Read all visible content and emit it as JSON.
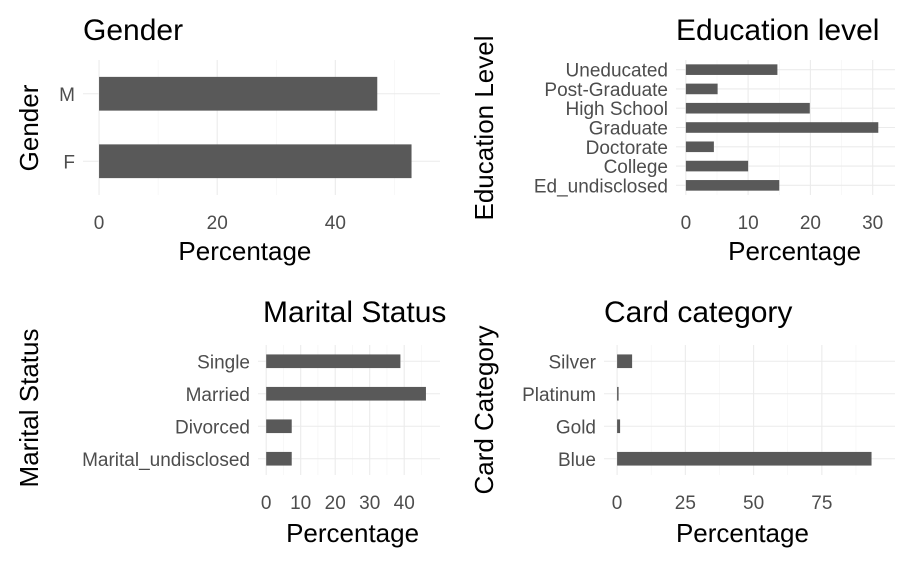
{
  "chart_data": [
    {
      "type": "bar",
      "orientation": "horizontal",
      "title": "Gender",
      "xlabel": "Percentage",
      "ylabel": "Gender",
      "categories": [
        "F",
        "M"
      ],
      "values": [
        52.9,
        47.1
      ],
      "xlim": [
        0,
        55
      ],
      "xticks": [
        0,
        20,
        40
      ],
      "grid": true,
      "bar_color": "#595959"
    },
    {
      "type": "bar",
      "orientation": "horizontal",
      "title": "Education level",
      "xlabel": "Percentage",
      "ylabel": "Education Level",
      "categories": [
        "Ed_undisclosed",
        "College",
        "Doctorate",
        "Graduate",
        "High School",
        "Post-Graduate",
        "Uneducated"
      ],
      "values": [
        15.0,
        10.0,
        4.5,
        30.9,
        19.9,
        5.1,
        14.7
      ],
      "xlim": [
        0,
        32
      ],
      "xticks": [
        0,
        10,
        20,
        30
      ],
      "grid": true,
      "bar_color": "#595959"
    },
    {
      "type": "bar",
      "orientation": "horizontal",
      "title": "Marital Status",
      "xlabel": "Percentage",
      "ylabel": "Marital Status",
      "categories": [
        "Marital_undisclosed",
        "Divorced",
        "Married",
        "Single"
      ],
      "values": [
        7.4,
        7.4,
        46.3,
        38.9
      ],
      "xlim": [
        0,
        48
      ],
      "xticks": [
        0,
        10,
        20,
        30,
        40
      ],
      "grid": true,
      "bar_color": "#595959"
    },
    {
      "type": "bar",
      "orientation": "horizontal",
      "title": "Card category",
      "xlabel": "Percentage",
      "ylabel": "Card Category",
      "categories": [
        "Blue",
        "Gold",
        "Platinum",
        "Silver"
      ],
      "values": [
        93.2,
        1.1,
        0.2,
        5.5
      ],
      "xlim": [
        0,
        97
      ],
      "xticks": [
        0,
        25,
        50,
        75
      ],
      "grid": true,
      "bar_color": "#595959"
    }
  ]
}
